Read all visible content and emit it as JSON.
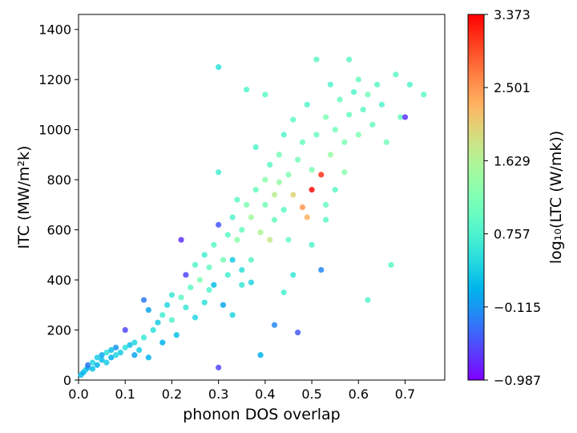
{
  "chart_data": {
    "type": "scatter",
    "xlabel": "phonon DOS overlap",
    "ylabel": "ITC (MW/m²k)",
    "colorbar_label": "log₁₀(LTC (W/mk))",
    "xlim": [
      0.0,
      0.785
    ],
    "ylim": [
      0,
      1460
    ],
    "xticks": [
      "0.0",
      "0.1",
      "0.2",
      "0.3",
      "0.4",
      "0.5",
      "0.6",
      "0.7"
    ],
    "xtick_values": [
      0.0,
      0.1,
      0.2,
      0.3,
      0.4,
      0.5,
      0.6,
      0.7
    ],
    "yticks": [
      "0",
      "200",
      "400",
      "600",
      "800",
      "1000",
      "1200",
      "1400"
    ],
    "ytick_values": [
      0,
      200,
      400,
      600,
      800,
      1000,
      1200,
      1400
    ],
    "colorbar": {
      "colormap": "rainbow",
      "min": -0.987,
      "max": 3.373,
      "ticks": [
        "3.373",
        "2.501",
        "1.629",
        "0.757",
        "−0.115",
        "−0.987"
      ],
      "tick_values": [
        3.373,
        2.501,
        1.629,
        0.757,
        -0.115,
        -0.987
      ]
    },
    "grid": false,
    "points": [
      [
        0.005,
        20,
        0.2
      ],
      [
        0.01,
        30,
        0.1
      ],
      [
        0.015,
        40,
        0.3
      ],
      [
        0.02,
        50,
        0.0
      ],
      [
        0.02,
        60,
        -0.3
      ],
      [
        0.03,
        45,
        0.2
      ],
      [
        0.03,
        70,
        0.4
      ],
      [
        0.04,
        60,
        0.1
      ],
      [
        0.04,
        90,
        0.3
      ],
      [
        0.05,
        80,
        0.2
      ],
      [
        0.05,
        100,
        0.0
      ],
      [
        0.06,
        70,
        0.3
      ],
      [
        0.06,
        110,
        0.5
      ],
      [
        0.07,
        90,
        0.1
      ],
      [
        0.07,
        120,
        0.2
      ],
      [
        0.08,
        100,
        0.4
      ],
      [
        0.08,
        130,
        -0.1
      ],
      [
        0.09,
        110,
        0.3
      ],
      [
        0.1,
        130,
        0.5
      ],
      [
        0.1,
        200,
        -0.6
      ],
      [
        0.11,
        140,
        0.2
      ],
      [
        0.12,
        150,
        0.4
      ],
      [
        0.12,
        100,
        0.0
      ],
      [
        0.13,
        120,
        0.3
      ],
      [
        0.14,
        170,
        0.6
      ],
      [
        0.14,
        320,
        -0.3
      ],
      [
        0.15,
        90,
        0.1
      ],
      [
        0.15,
        280,
        0.0
      ],
      [
        0.16,
        200,
        0.5
      ],
      [
        0.17,
        230,
        0.3
      ],
      [
        0.18,
        260,
        0.7
      ],
      [
        0.18,
        150,
        0.1
      ],
      [
        0.19,
        300,
        0.4
      ],
      [
        0.2,
        240,
        0.8
      ],
      [
        0.2,
        340,
        0.6
      ],
      [
        0.21,
        180,
        0.2
      ],
      [
        0.22,
        330,
        0.9
      ],
      [
        0.22,
        560,
        -0.7
      ],
      [
        0.23,
        420,
        -0.6
      ],
      [
        0.23,
        290,
        0.6
      ],
      [
        0.24,
        370,
        0.9
      ],
      [
        0.25,
        460,
        0.8
      ],
      [
        0.25,
        250,
        0.4
      ],
      [
        0.26,
        400,
        1.2
      ],
      [
        0.27,
        500,
        0.7
      ],
      [
        0.27,
        310,
        0.5
      ],
      [
        0.28,
        450,
        1.0
      ],
      [
        0.28,
        360,
        0.8
      ],
      [
        0.29,
        540,
        0.9
      ],
      [
        0.3,
        620,
        -0.5
      ],
      [
        0.3,
        830,
        0.7
      ],
      [
        0.3,
        50,
        -0.6
      ],
      [
        0.3,
        1250,
        0.5
      ],
      [
        0.31,
        480,
        1.1
      ],
      [
        0.32,
        580,
        0.9
      ],
      [
        0.32,
        420,
        0.7
      ],
      [
        0.33,
        650,
        0.8
      ],
      [
        0.33,
        260,
        0.4
      ],
      [
        0.34,
        560,
        1.3
      ],
      [
        0.34,
        720,
        0.9
      ],
      [
        0.35,
        600,
        1.0
      ],
      [
        0.35,
        380,
        0.6
      ],
      [
        0.36,
        700,
        1.2
      ],
      [
        0.36,
        1160,
        0.8
      ],
      [
        0.37,
        650,
        1.5
      ],
      [
        0.37,
        480,
        0.9
      ],
      [
        0.38,
        760,
        1.0
      ],
      [
        0.38,
        930,
        0.8
      ],
      [
        0.39,
        590,
        1.6
      ],
      [
        0.39,
        100,
        0.1
      ],
      [
        0.4,
        800,
        1.3
      ],
      [
        0.4,
        700,
        1.1
      ],
      [
        0.4,
        1140,
        0.9
      ],
      [
        0.41,
        560,
        1.8
      ],
      [
        0.41,
        860,
        0.9
      ],
      [
        0.42,
        740,
        1.7
      ],
      [
        0.42,
        640,
        1.0
      ],
      [
        0.43,
        900,
        1.1
      ],
      [
        0.43,
        790,
        1.4
      ],
      [
        0.44,
        680,
        0.9
      ],
      [
        0.44,
        980,
        0.8
      ],
      [
        0.45,
        820,
        1.2
      ],
      [
        0.45,
        560,
        1.0
      ],
      [
        0.46,
        740,
        2.0
      ],
      [
        0.46,
        1040,
        0.9
      ],
      [
        0.47,
        880,
        1.1
      ],
      [
        0.47,
        190,
        -0.5
      ],
      [
        0.48,
        690,
        2.5
      ],
      [
        0.48,
        950,
        1.0
      ],
      [
        0.49,
        650,
        2.3
      ],
      [
        0.49,
        1100,
        0.8
      ],
      [
        0.5,
        760,
        3.3
      ],
      [
        0.5,
        840,
        1.2
      ],
      [
        0.51,
        1280,
        0.9
      ],
      [
        0.51,
        980,
        1.0
      ],
      [
        0.52,
        820,
        3.1
      ],
      [
        0.52,
        440,
        -0.2
      ],
      [
        0.53,
        1050,
        1.2
      ],
      [
        0.53,
        700,
        1.0
      ],
      [
        0.54,
        900,
        1.4
      ],
      [
        0.54,
        1180,
        0.8
      ],
      [
        0.55,
        1000,
        1.1
      ],
      [
        0.55,
        760,
        0.9
      ],
      [
        0.56,
        1120,
        1.0
      ],
      [
        0.57,
        950,
        1.2
      ],
      [
        0.57,
        830,
        1.3
      ],
      [
        0.58,
        1280,
        0.9
      ],
      [
        0.58,
        1060,
        1.0
      ],
      [
        0.59,
        1150,
        0.8
      ],
      [
        0.6,
        980,
        1.2
      ],
      [
        0.6,
        1200,
        1.0
      ],
      [
        0.61,
        1080,
        0.9
      ],
      [
        0.62,
        320,
        0.8
      ],
      [
        0.62,
        1140,
        1.1
      ],
      [
        0.63,
        1020,
        1.0
      ],
      [
        0.64,
        1180,
        0.9
      ],
      [
        0.65,
        1100,
        0.8
      ],
      [
        0.66,
        950,
        1.1
      ],
      [
        0.67,
        460,
        0.9
      ],
      [
        0.68,
        1220,
        0.9
      ],
      [
        0.69,
        1050,
        1.0
      ],
      [
        0.7,
        1050,
        -0.7
      ],
      [
        0.71,
        1180,
        0.8
      ],
      [
        0.74,
        1140,
        0.9
      ],
      [
        0.29,
        380,
        0.2
      ],
      [
        0.31,
        300,
        0.0
      ],
      [
        0.33,
        480,
        0.3
      ],
      [
        0.35,
        440,
        0.5
      ],
      [
        0.37,
        390,
        0.4
      ],
      [
        0.42,
        220,
        -0.2
      ],
      [
        0.44,
        350,
        0.7
      ],
      [
        0.46,
        420,
        0.6
      ],
      [
        0.5,
        540,
        0.8
      ],
      [
        0.53,
        640,
        0.9
      ]
    ]
  }
}
